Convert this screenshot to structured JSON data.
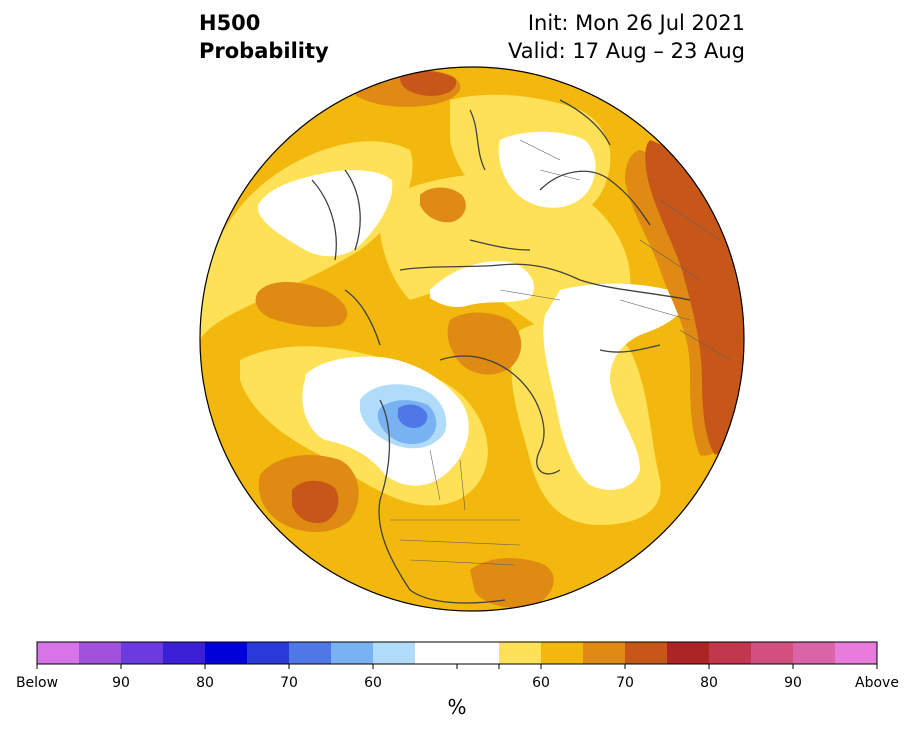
{
  "header": {
    "variable": "H500",
    "product": "Probability",
    "init": "Init: Mon 26 Jul 2021",
    "valid": "Valid: 17 Aug – 23 Aug"
  },
  "colorbar": {
    "unit": "%",
    "colors": [
      "#d674e8",
      "#a052dc",
      "#6b3ae0",
      "#3a1fd4",
      "#0000d9",
      "#2a3ad8",
      "#4f78e6",
      "#79b2f2",
      "#b0dcfa",
      "#ffffff",
      "#ffffff",
      "#ffe157",
      "#f2b80d",
      "#df8a13",
      "#c65718",
      "#ad2424",
      "#c2374e",
      "#d1507e",
      "#d964a8",
      "#e87cdc"
    ],
    "tick_labels": [
      "Below",
      "90",
      "80",
      "70",
      "60",
      "60",
      "70",
      "80",
      "90",
      "Above"
    ]
  },
  "map": {
    "projection": "north-polar-stereographic",
    "background_color": "#f2b80d",
    "category_colors": {
      "near-normal": "#ffffff",
      "below-55": "#b0dcfa",
      "below-60": "#79b2f2",
      "below-65": "#4f78e6",
      "above-55": "#ffe157",
      "above-60": "#f2b80d",
      "above-65": "#df8a13",
      "above-70": "#c65718"
    }
  }
}
